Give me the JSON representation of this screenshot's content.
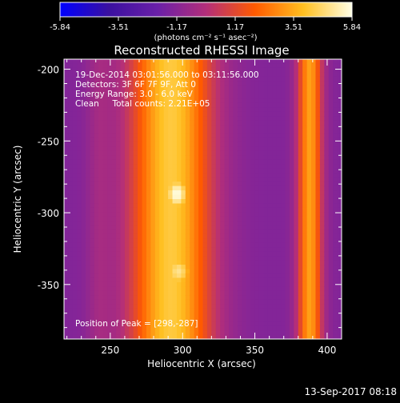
{
  "chart_data": {
    "type": "heatmap",
    "title": "Reconstructed RHESSI Image",
    "xlabel": "Heliocentric X (arcsec)",
    "ylabel": "Heliocentric Y (arcsec)",
    "xlim": [
      218,
      410
    ],
    "ylim": [
      -388,
      -193
    ],
    "x_ticks": [
      "250",
      "300",
      "350",
      "400"
    ],
    "y_ticks": [
      "-200",
      "-250",
      "-300",
      "-350"
    ],
    "colorbar": {
      "min": -5.84,
      "max": 5.84,
      "tick_labels": [
        "-5.84",
        "-3.51",
        "-1.17",
        "1.17",
        "3.51",
        "5.84"
      ],
      "unit_label": "(photons cm⁻² s⁻¹ asec⁻²)",
      "colors": [
        "#0000ff",
        "#3a10a0",
        "#6a20a8",
        "#b32e7a",
        "#ff5a00",
        "#ffbf20",
        "#ffffe6"
      ]
    },
    "annotations": [
      "19-Dec-2014 03:01:56.000 to 03:11:56.000",
      "Detectors: 3F 6F 7F 9F, Att 0",
      "Energy Range: 3.0 - 6.0 keV",
      "Clean     Total counts: 2.21E+05"
    ],
    "peak_label": "Position of Peak = [298,-287]",
    "background_level": -1.3,
    "vertical_bands": [
      {
        "center_x": 292,
        "width": 20,
        "level": 4.2
      },
      {
        "center_x": 388,
        "width": 6,
        "level": 3.3
      },
      {
        "center_x": 242,
        "width": 6,
        "level": -0.6
      }
    ],
    "sources": [
      {
        "x": 296,
        "y": -287,
        "sigma_x": 8,
        "sigma_y": 11,
        "level": 5.84
      },
      {
        "x": 297,
        "y": -341,
        "sigma_x": 9,
        "sigma_y": 11,
        "level": 5.0
      }
    ]
  },
  "footer": {
    "date": "13-Sep-2017 08:18"
  }
}
